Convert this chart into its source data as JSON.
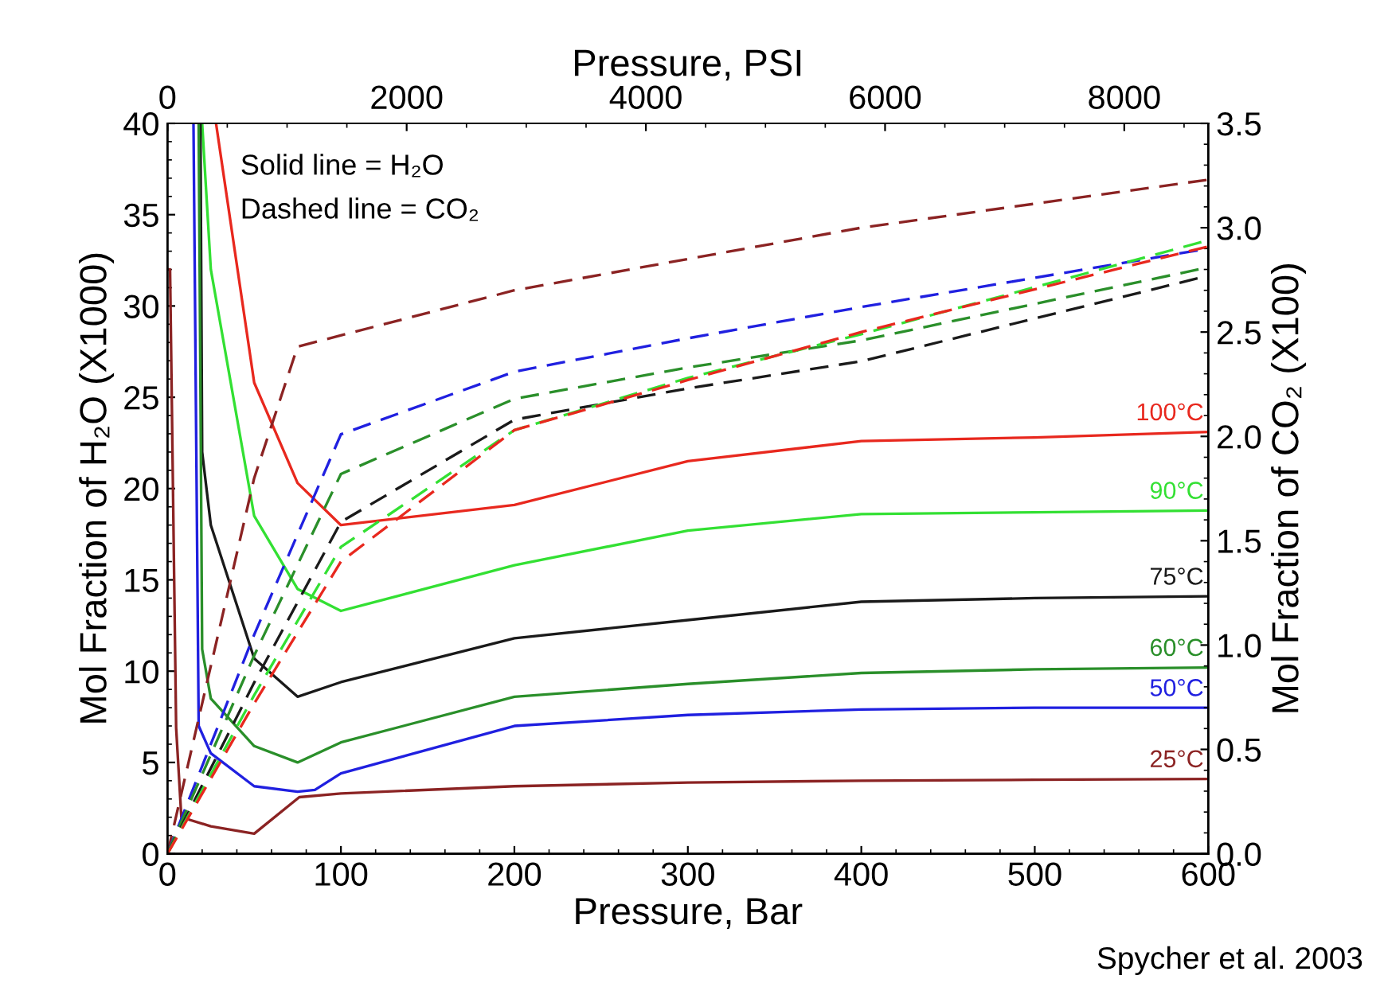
{
  "chart_data": {
    "type": "line",
    "xlabel": "Pressure, Bar",
    "ylabel": "Mol Fraction of H₂O (X1000)",
    "y2label": "Mol Fraction of CO₂ (X100)",
    "x2label": "Pressure, PSI",
    "xlim": [
      0,
      600
    ],
    "xticks": [
      0,
      100,
      200,
      300,
      400,
      500,
      600
    ],
    "ylim": [
      0,
      40
    ],
    "yticks": [
      0,
      5,
      10,
      15,
      20,
      25,
      30,
      35,
      40
    ],
    "y2lim": [
      0,
      3.5
    ],
    "y2ticks": [
      {
        "value": 0,
        "label": "0.0"
      },
      {
        "value": 0.5,
        "label": "0.5"
      },
      {
        "value": 1,
        "label": "1.0"
      },
      {
        "value": 1.5,
        "label": "1.5"
      },
      {
        "value": 2,
        "label": "2.0"
      },
      {
        "value": 2.5,
        "label": "2.5"
      },
      {
        "value": 3,
        "label": "3.0"
      },
      {
        "value": 3.5,
        "label": "3.5"
      }
    ],
    "x2lim": [
      0,
      8702
    ],
    "x2ticks": [
      0,
      2000,
      4000,
      6000,
      8000
    ],
    "grid": false,
    "legend": false,
    "marker": "none",
    "annotations": [
      "Solid line = H₂O",
      "Dashed line = CO₂",
      "Spycher et al. 2003"
    ],
    "series": [
      {
        "name": "100°C",
        "color": "#e8281e",
        "line_style": "solid",
        "x": [
          28,
          50,
          75,
          100,
          200,
          300,
          400,
          500,
          600
        ],
        "values": [
          40,
          25.8,
          20.3,
          18,
          19.1,
          21.5,
          22.6,
          22.8,
          23.1
        ]
      },
      {
        "name": "90°C",
        "color": "#33e033",
        "line_style": "solid",
        "x": [
          20,
          25,
          50,
          75,
          100,
          200,
          300,
          400,
          500,
          600
        ],
        "values": [
          40,
          32,
          18.5,
          14.5,
          13.3,
          15.8,
          17.7,
          18.6,
          18.7,
          18.8
        ]
      },
      {
        "name": "75°C",
        "color": "#1a1a1a",
        "line_style": "solid",
        "x": [
          19,
          20,
          25,
          50,
          75,
          100,
          200,
          300,
          400,
          500,
          600
        ],
        "values": [
          40,
          22,
          18,
          10.7,
          8.6,
          9.4,
          11.8,
          12.8,
          13.8,
          14,
          14.1
        ]
      },
      {
        "name": "60°C",
        "color": "#2a8f2a",
        "line_style": "solid",
        "x": [
          18,
          20,
          25,
          50,
          75,
          100,
          200,
          300,
          400,
          500,
          600
        ],
        "values": [
          40,
          11.2,
          8.5,
          5.9,
          5,
          6.1,
          8.6,
          9.3,
          9.9,
          10.1,
          10.2
        ]
      },
      {
        "name": "50°C",
        "color": "#2020e0",
        "line_style": "solid",
        "x": [
          15,
          18,
          25,
          50,
          75,
          85,
          100,
          200,
          300,
          400,
          500,
          600
        ],
        "values": [
          40,
          7,
          5.5,
          3.7,
          3.4,
          3.5,
          4.4,
          7,
          7.6,
          7.9,
          8,
          8
        ]
      },
      {
        "name": "25°C",
        "color": "#8b2323",
        "line_style": "solid",
        "x": [
          0,
          1.5,
          5,
          8,
          25,
          50,
          76,
          100,
          200,
          300,
          400,
          500,
          600
        ],
        "values": [
          32,
          32,
          6.9,
          2,
          1.5,
          1.1,
          3.1,
          3.3,
          3.7,
          3.9,
          4,
          4.05,
          4.1
        ]
      },
      {
        "color": "#8b2323",
        "line_style": "dashed",
        "axis": "y2",
        "x": [
          0,
          25,
          50,
          75,
          200,
          400,
          600
        ],
        "values": [
          0,
          0.9,
          1.8,
          2.43,
          2.7,
          3,
          3.23
        ]
      },
      {
        "color": "#2020e0",
        "line_style": "dashed",
        "axis": "y2",
        "x": [
          0,
          50,
          100,
          200,
          300,
          400,
          600
        ],
        "values": [
          0,
          1.05,
          2.01,
          2.31,
          2.47,
          2.62,
          2.9
        ]
      },
      {
        "color": "#2a8f2a",
        "line_style": "dashed",
        "axis": "y2",
        "x": [
          0,
          50,
          100,
          200,
          300,
          400,
          600
        ],
        "values": [
          0,
          0.95,
          1.82,
          2.18,
          2.33,
          2.46,
          2.81
        ]
      },
      {
        "color": "#1a1a1a",
        "line_style": "dashed",
        "axis": "y2",
        "x": [
          0,
          50,
          100,
          200,
          300,
          400,
          600
        ],
        "values": [
          0,
          0.82,
          1.59,
          2.08,
          2.23,
          2.36,
          2.77
        ]
      },
      {
        "color": "#33e033",
        "line_style": "dashed",
        "axis": "y2",
        "x": [
          0,
          50,
          100,
          200,
          300,
          400,
          600
        ],
        "values": [
          0,
          0.76,
          1.47,
          2.03,
          2.28,
          2.49,
          2.94
        ]
      },
      {
        "color": "#e8281e",
        "line_style": "dashed",
        "axis": "y2",
        "x": [
          0,
          50,
          100,
          200,
          300,
          400,
          600
        ],
        "values": [
          0,
          0.72,
          1.4,
          2.03,
          2.27,
          2.5,
          2.91
        ]
      }
    ]
  }
}
